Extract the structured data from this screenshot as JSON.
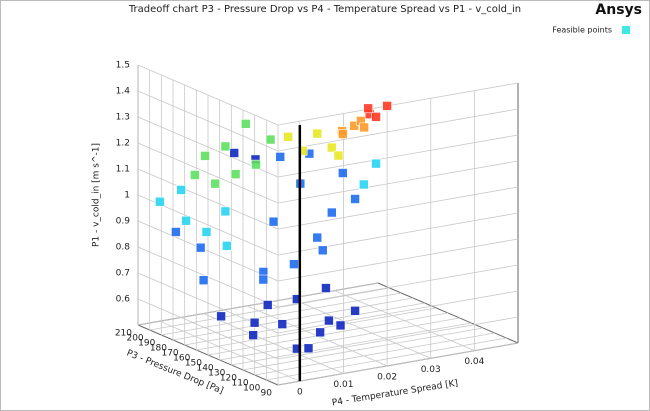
{
  "chart_data": {
    "type": "scatter3d",
    "title": "Tradeoff chart P3 - Pressure Drop vs P4 - Temperature Spread vs P1 - v_cold_in",
    "brand": "Ansys",
    "xlabel": "P4 - Temperature Spread  [K]",
    "ylabel": "P3 - Pressure Drop  [Pa]",
    "zlabel": "P1 - v_cold_in  [m s^-1]",
    "legend": {
      "label": "Feasible points",
      "color": "#40e8e8",
      "position": "upper right"
    },
    "xlim": [
      -0.005,
      0.05
    ],
    "xticks": [
      0,
      0.01,
      0.02,
      0.03,
      0.04
    ],
    "ylim": [
      90,
      210
    ],
    "yticks": [
      90,
      100,
      110,
      120,
      130,
      140,
      150,
      160,
      170,
      180,
      190,
      200,
      210
    ],
    "zlim": [
      0.5,
      1.5
    ],
    "zticks": [
      0.6,
      0.7,
      0.8,
      0.9,
      1,
      1.1,
      1.2,
      1.3,
      1.4,
      1.5
    ],
    "grid": true,
    "groups": [
      {
        "color": "#1028c0",
        "points": [
          [
            0.002,
            100,
            0.6
          ],
          [
            0.006,
            105,
            0.58
          ],
          [
            0.01,
            110,
            0.62
          ],
          [
            0.004,
            120,
            0.65
          ],
          [
            0.008,
            95,
            0.7
          ],
          [
            0.012,
            100,
            0.66
          ],
          [
            0.0,
            130,
            0.6
          ],
          [
            0.003,
            140,
            0.62
          ],
          [
            -0.002,
            150,
            0.64
          ],
          [
            0.006,
            115,
            0.75
          ],
          [
            0.01,
            105,
            0.8
          ],
          [
            0.002,
            125,
            0.72
          ],
          [
            -0.003,
            135,
            1.3
          ],
          [
            0.0,
            128,
            1.28
          ],
          [
            0.014,
            95,
            0.72
          ]
        ]
      },
      {
        "color": "#1e6cf0",
        "points": [
          [
            0.004,
            110,
            0.9
          ],
          [
            0.008,
            105,
            1.0
          ],
          [
            0.002,
            120,
            1.05
          ],
          [
            0.01,
            100,
            1.1
          ],
          [
            0.006,
            112,
            1.2
          ],
          [
            0.012,
            98,
            1.25
          ],
          [
            0.003,
            118,
            1.3
          ],
          [
            0.009,
            104,
            0.95
          ],
          [
            0.014,
            95,
            1.15
          ],
          [
            0.001,
            125,
            0.85
          ],
          [
            0.007,
            108,
            1.32
          ],
          [
            -0.002,
            165,
            0.75
          ],
          [
            0.0,
            175,
            0.85
          ],
          [
            -0.003,
            185,
            0.9
          ],
          [
            0.005,
            140,
            0.78
          ]
        ]
      },
      {
        "color": "#28d4f0",
        "points": [
          [
            -0.002,
            180,
            0.95
          ],
          [
            0.0,
            170,
            0.92
          ],
          [
            -0.004,
            195,
            1.0
          ],
          [
            0.002,
            160,
            0.88
          ],
          [
            -0.001,
            188,
            1.05
          ],
          [
            0.003,
            165,
            1.0
          ],
          [
            0.016,
            95,
            1.2
          ],
          [
            0.018,
            92,
            1.28
          ]
        ]
      },
      {
        "color": "#5ee060",
        "points": [
          [
            0.002,
            170,
            1.1
          ],
          [
            0.004,
            160,
            1.15
          ],
          [
            0.0,
            180,
            1.12
          ],
          [
            0.006,
            150,
            1.2
          ],
          [
            0.003,
            165,
            1.25
          ],
          [
            0.008,
            145,
            1.3
          ],
          [
            0.005,
            155,
            1.35
          ],
          [
            0.001,
            175,
            1.2
          ]
        ]
      },
      {
        "color": "#e8e824",
        "points": [
          [
            0.006,
            110,
            1.33
          ],
          [
            0.01,
            100,
            1.35
          ],
          [
            0.008,
            105,
            1.4
          ],
          [
            0.004,
            115,
            1.38
          ],
          [
            0.011,
            98,
            1.32
          ]
        ]
      },
      {
        "color": "#ff9a28",
        "points": [
          [
            0.011,
            95,
            1.42
          ],
          [
            0.013,
            92,
            1.44
          ],
          [
            0.012,
            98,
            1.4
          ],
          [
            0.014,
            90,
            1.46
          ],
          [
            0.015,
            91,
            1.43
          ]
        ]
      },
      {
        "color": "#ff3a24",
        "points": [
          [
            0.016,
            90,
            1.48
          ],
          [
            0.018,
            92,
            1.46
          ],
          [
            0.02,
            90,
            1.5
          ],
          [
            0.017,
            95,
            1.49
          ]
        ]
      }
    ]
  }
}
